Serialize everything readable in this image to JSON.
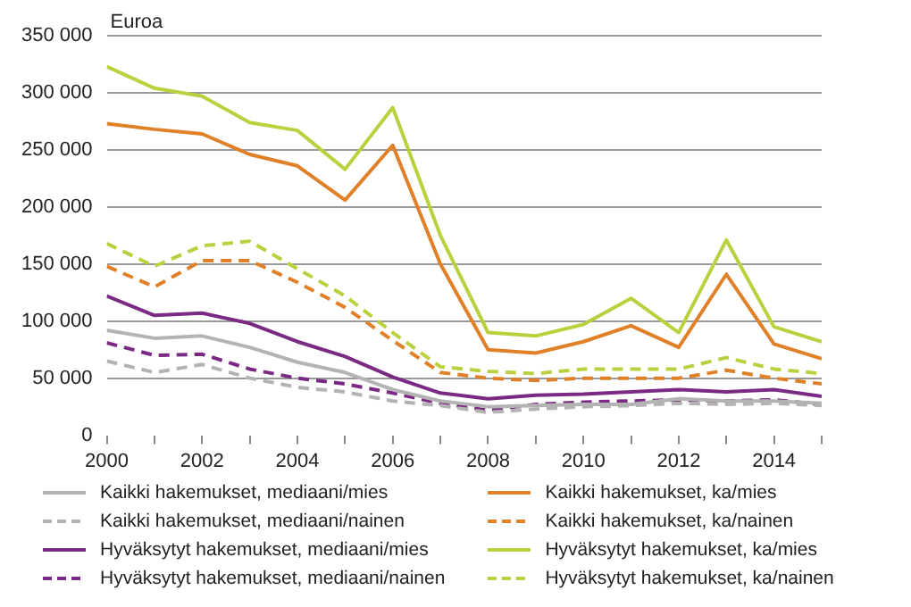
{
  "chart_data": {
    "type": "line",
    "ylabel": "Euroa",
    "x": [
      2000,
      2001,
      2002,
      2003,
      2004,
      2005,
      2006,
      2007,
      2008,
      2009,
      2010,
      2011,
      2012,
      2013,
      2014,
      2015
    ],
    "xlim": [
      2000,
      2015
    ],
    "xticks": [
      2000,
      {
        "value": 2001,
        "label": null
      },
      2002,
      {
        "value": 2003,
        "label": null
      },
      2004,
      {
        "value": 2005,
        "label": null
      },
      2006,
      {
        "value": 2007,
        "label": null
      },
      2008,
      {
        "value": 2009,
        "label": null
      },
      2010,
      {
        "value": 2011,
        "label": null
      },
      2012,
      {
        "value": 2013,
        "label": null
      },
      2014,
      {
        "value": 2015,
        "label": null
      }
    ],
    "ylim": [
      0,
      350000
    ],
    "yticks": [
      {
        "value": 0,
        "label": "0"
      },
      {
        "value": 50000,
        "label": "50 000"
      },
      {
        "value": 100000,
        "label": "100 000"
      },
      {
        "value": 150000,
        "label": "150 000"
      },
      {
        "value": 200000,
        "label": "200 000"
      },
      {
        "value": 250000,
        "label": "250 000"
      },
      {
        "value": 300000,
        "label": "300 000"
      },
      {
        "value": 350000,
        "label": "350 000"
      }
    ],
    "grid": "y",
    "legend": "bottom",
    "marker": "none",
    "series": [
      {
        "name": "Kaikki hakemukset, mediaani/mies",
        "color": "#b3b3b3",
        "line_style": "solid",
        "values": [
          92000,
          85000,
          87000,
          77000,
          64000,
          55000,
          40000,
          30000,
          25000,
          26000,
          27000,
          27000,
          32000,
          30000,
          30000,
          28000
        ]
      },
      {
        "name": "Kaikki hakemukset, mediaani/nainen",
        "color": "#b3b3b3",
        "line_style": "dashed",
        "values": [
          65000,
          55000,
          62000,
          50000,
          42000,
          38000,
          30000,
          26000,
          20000,
          23000,
          25000,
          26000,
          28000,
          27000,
          28000,
          26000
        ]
      },
      {
        "name": "Hyväksytyt hakemukset, mediaani/mies",
        "color": "#7b2a83",
        "line_style": "solid",
        "values": [
          122000,
          105000,
          107000,
          98000,
          82000,
          69000,
          51000,
          37000,
          32000,
          35000,
          36000,
          38000,
          40000,
          38000,
          40000,
          34000
        ]
      },
      {
        "name": "Hyväksytyt hakemukset, mediaani/nainen",
        "color": "#7b2a83",
        "line_style": "dashed",
        "values": [
          81000,
          70000,
          71000,
          58000,
          50000,
          45000,
          37000,
          28000,
          22000,
          27000,
          29000,
          30000,
          31000,
          30000,
          31000,
          27000
        ]
      },
      {
        "name": "Kaikki hakemukset, ka/mies",
        "color": "#e0812a",
        "line_style": "solid",
        "values": [
          273000,
          268000,
          264000,
          246000,
          236000,
          206000,
          254000,
          150000,
          75000,
          72000,
          82000,
          96000,
          77000,
          141000,
          80000,
          67000
        ]
      },
      {
        "name": "Kaikki hakemukset, ka/nainen",
        "color": "#e0812a",
        "line_style": "dashed",
        "values": [
          148000,
          130000,
          153000,
          153000,
          134000,
          112000,
          83000,
          55000,
          50000,
          48000,
          50000,
          50000,
          50000,
          57000,
          50000,
          45000
        ]
      },
      {
        "name": "Hyväksytyt hakemukset, ka/mies",
        "color": "#bcd03f",
        "line_style": "solid",
        "values": [
          323000,
          304000,
          297000,
          274000,
          267000,
          233000,
          287000,
          175000,
          90000,
          87000,
          97000,
          120000,
          90000,
          171000,
          95000,
          82000
        ]
      },
      {
        "name": "Hyväksytyt hakemukset, ka/nainen",
        "color": "#bcd03f",
        "line_style": "dashed",
        "values": [
          168000,
          148000,
          166000,
          170000,
          146000,
          122000,
          90000,
          60000,
          56000,
          54000,
          58000,
          58000,
          58000,
          68000,
          58000,
          54000
        ]
      }
    ]
  }
}
